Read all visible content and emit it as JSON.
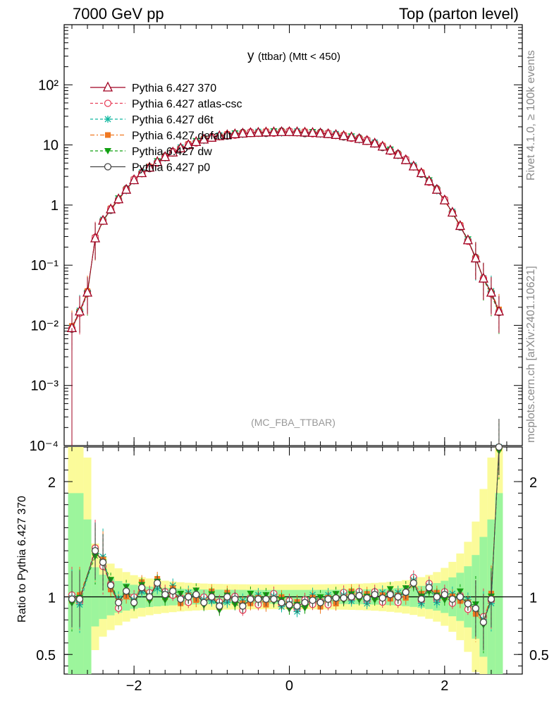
{
  "header": {
    "left": "7000 GeV pp",
    "right": "Top (parton level)"
  },
  "side_labels": {
    "rivet": "Rivet 4.1.0, ≥ 100k events",
    "mcplots": "mcplots.cern.ch [arXiv:2401.10621]"
  },
  "chart_data": {
    "type": "scatter",
    "title_main": "y",
    "title_sub": "(ttbar) (Mtt < 450)",
    "watermark": "(MC_FBA_TTBAR)",
    "xlabel": "",
    "ylabel_ratio": "Ratio to Pythia 6.427 370",
    "xlim": [
      -2.9,
      3.0
    ],
    "ylim": [
      0.0001,
      1000
    ],
    "ylim_ratio": [
      0.33,
      2.3
    ],
    "xticks": [
      "−2",
      "0",
      "2"
    ],
    "xtick_values": [
      -2,
      0,
      2
    ],
    "yticks_main": [
      "10⁻⁴",
      "10⁻³",
      "10⁻²",
      "10⁻¹",
      "1",
      "10",
      "10²"
    ],
    "ytick_values_main": [
      0.0001,
      0.001,
      0.01,
      0.1,
      1,
      10,
      100
    ],
    "yticks_ratio": [
      "0.5",
      "1",
      "2"
    ],
    "ytick_values_ratio": [
      0.5,
      1,
      2
    ],
    "legend_position": "top-left",
    "series": [
      {
        "name": "Pythia 6.427 370",
        "color": "#a00020",
        "marker": "triangle-open",
        "line": "solid"
      },
      {
        "name": "Pythia 6.427 atlas-csc",
        "color": "#e8405a",
        "marker": "circle-open",
        "line": "dashed"
      },
      {
        "name": "Pythia 6.427 d6t",
        "color": "#10b8a0",
        "marker": "star",
        "line": "dashed"
      },
      {
        "name": "Pythia 6.427 default",
        "color": "#f07820",
        "marker": "square-filled",
        "line": "dashdot"
      },
      {
        "name": "Pythia 6.427 dw",
        "color": "#10a010",
        "marker": "triangle-down-filled",
        "line": "dashed"
      },
      {
        "name": "Pythia 6.427 p0",
        "color": "#444444",
        "marker": "circle-open",
        "line": "solid"
      }
    ],
    "reference_curve": {
      "x": [
        -2.8,
        -2.7,
        -2.6,
        -2.5,
        -2.4,
        -2.3,
        -2.2,
        -2.1,
        -2.0,
        -1.9,
        -1.8,
        -1.7,
        -1.6,
        -1.5,
        -1.4,
        -1.3,
        -1.2,
        -1.1,
        -1.0,
        -0.9,
        -0.8,
        -0.7,
        -0.6,
        -0.5,
        -0.4,
        -0.3,
        -0.2,
        -0.1,
        0.0,
        0.1,
        0.2,
        0.3,
        0.4,
        0.5,
        0.6,
        0.7,
        0.8,
        0.9,
        1.0,
        1.1,
        1.2,
        1.3,
        1.4,
        1.5,
        1.6,
        1.7,
        1.8,
        1.9,
        2.0,
        2.1,
        2.2,
        2.3,
        2.4,
        2.5,
        2.6,
        2.7
      ],
      "y": [
        0.009,
        0.017,
        0.035,
        0.28,
        0.55,
        0.85,
        1.25,
        1.8,
        2.6,
        3.4,
        4.2,
        5.2,
        6.3,
        7.5,
        8.8,
        10.0,
        11.2,
        12.3,
        13.2,
        14.0,
        14.6,
        15.1,
        15.5,
        15.8,
        16.0,
        16.2,
        16.3,
        16.4,
        16.4,
        16.3,
        16.1,
        15.9,
        15.6,
        15.2,
        14.7,
        14.1,
        13.4,
        12.6,
        11.7,
        10.6,
        9.4,
        8.1,
        6.9,
        5.6,
        4.4,
        3.4,
        2.5,
        1.8,
        1.2,
        0.75,
        0.45,
        0.26,
        0.13,
        0.06,
        0.035,
        0.017
      ]
    },
    "ratio_points": {
      "x": [
        -2.8,
        -2.7,
        -2.5,
        -2.4,
        -2.3,
        -2.2,
        -2.1,
        -2.0,
        -1.9,
        -1.8,
        -1.7,
        -1.6,
        -1.5,
        -1.4,
        -1.3,
        -1.2,
        -1.1,
        -1.0,
        -0.9,
        -0.8,
        -0.7,
        -0.6,
        -0.5,
        -0.4,
        -0.3,
        -0.2,
        -0.1,
        0.0,
        0.1,
        0.2,
        0.3,
        0.4,
        0.5,
        0.6,
        0.7,
        0.8,
        0.9,
        1.0,
        1.1,
        1.2,
        1.3,
        1.4,
        1.5,
        1.6,
        1.7,
        1.8,
        1.9,
        2.0,
        2.1,
        2.2,
        2.3,
        2.4,
        2.5,
        2.6,
        2.7
      ],
      "y": [
        0.98,
        0.98,
        1.4,
        1.3,
        1.1,
        0.95,
        1.05,
        0.95,
        1.08,
        1.0,
        1.12,
        1.02,
        1.05,
        0.98,
        1.0,
        1.02,
        0.95,
        1.0,
        0.92,
        1.0,
        0.98,
        0.92,
        0.98,
        0.98,
        0.98,
        0.98,
        0.95,
        0.93,
        0.92,
        0.95,
        0.97,
        0.95,
        0.98,
        0.99,
        0.99,
        1.0,
        1.01,
        0.99,
        1.02,
        0.99,
        1.02,
        1.0,
        1.04,
        1.12,
        0.98,
        1.08,
        1.0,
        1.02,
        0.98,
        1.0,
        0.94,
        0.9,
        0.78,
        0.98,
        2.3
      ]
    }
  }
}
